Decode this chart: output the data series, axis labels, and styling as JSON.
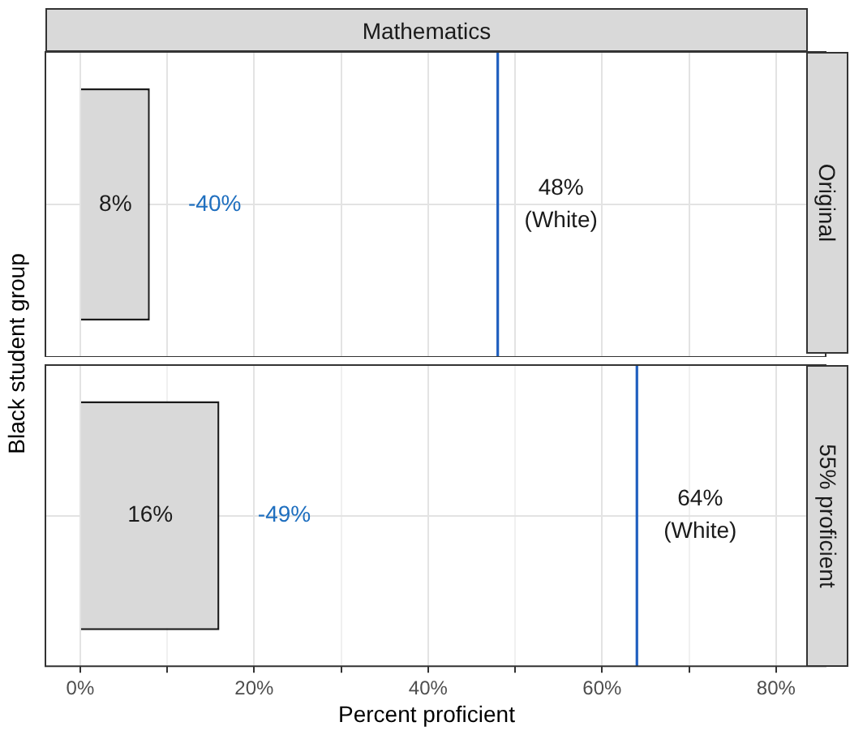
{
  "chart_data": [
    {
      "type": "bar",
      "orientation": "horizontal",
      "title": "Mathematics",
      "subtitle": "Original",
      "ylabel": "Black student group",
      "categories": [
        null
      ],
      "values": [
        8
      ],
      "value_labels": [
        "8%"
      ],
      "color": "#d9d9d9",
      "xlim": [
        -4,
        85.7
      ],
      "xticks": [
        0,
        10,
        20,
        30,
        40,
        50,
        60,
        70,
        80
      ],
      "ref_lines": [
        {
          "axis": "x",
          "value": 48,
          "label": "48%\n(White)",
          "color": "#1f5fbf"
        }
      ],
      "annotations": [
        "-40%"
      ],
      "grid": true,
      "tick_labels": false,
      "legend": false
    },
    {
      "type": "bar",
      "orientation": "horizontal",
      "subtitle": "55% proficient",
      "xlabel": "Percent proficient",
      "categories": [
        null
      ],
      "values": [
        16
      ],
      "value_labels": [
        "16%"
      ],
      "color": "#d9d9d9",
      "xlim": [
        -4,
        85.7
      ],
      "xticks": [
        {
          "value": 0,
          "label": "0%"
        },
        {
          "value": 10,
          "label": null
        },
        {
          "value": 20,
          "label": "20%"
        },
        {
          "value": 30,
          "label": null
        },
        {
          "value": 40,
          "label": "40%"
        },
        {
          "value": 50,
          "label": null
        },
        {
          "value": 60,
          "label": "60%"
        },
        {
          "value": 70,
          "label": null
        },
        {
          "value": 80,
          "label": "80%"
        }
      ],
      "ref_lines": [
        {
          "axis": "x",
          "value": 64,
          "label": "64%\n(White)",
          "color": "#1f5fbf"
        }
      ],
      "annotations": [
        "-49%"
      ],
      "grid": true,
      "tick_labels": "x",
      "legend": false
    }
  ]
}
